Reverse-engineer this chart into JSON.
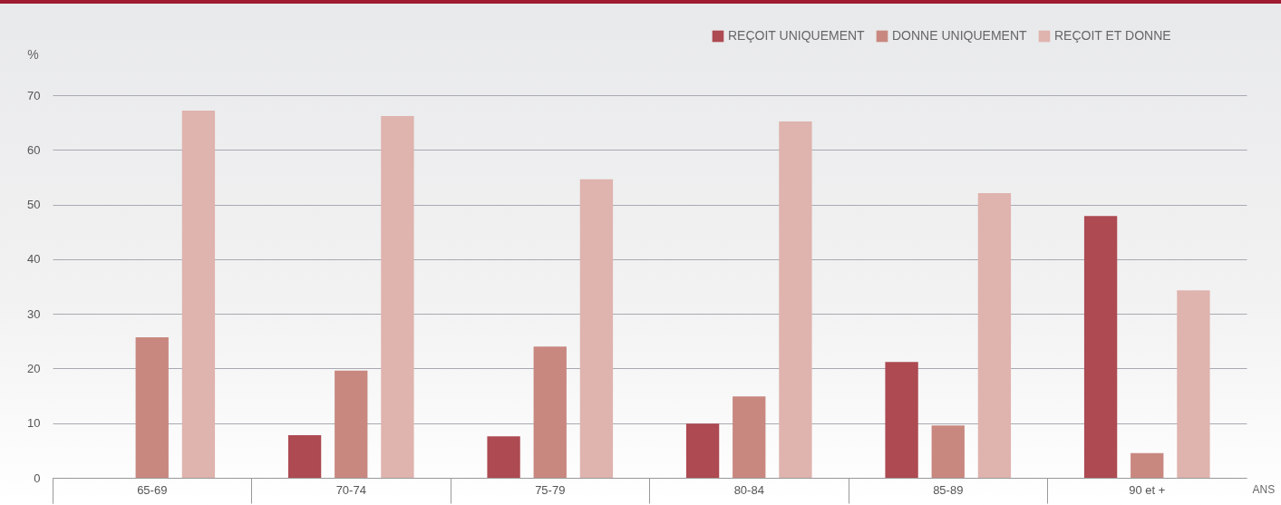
{
  "chart_data": {
    "type": "bar",
    "xlabel": "ANS",
    "ylabel": "%",
    "categories": [
      "65-69",
      "70-74",
      "75-79",
      "80-84",
      "85-89",
      "90 et +"
    ],
    "series": [
      {
        "name": "REÇOIT UNIQUEMENT",
        "color": "#ad4a52",
        "values": [
          null,
          7.8,
          7.6,
          9.9,
          21.2,
          47.9
        ]
      },
      {
        "name": "DONNE UNIQUEMENT",
        "color": "#c88880",
        "values": [
          25.7,
          19.6,
          24.0,
          14.9,
          9.6,
          4.5
        ]
      },
      {
        "name": "REÇOIT ET DONNE",
        "color": "#dfb3ae",
        "values": [
          67.2,
          66.2,
          54.6,
          65.2,
          52.1,
          34.3
        ]
      }
    ],
    "ylim": [
      0,
      70
    ],
    "yticks": [
      0,
      10,
      20,
      30,
      40,
      50,
      60,
      70
    ],
    "grid": "y",
    "legend": "top right"
  }
}
